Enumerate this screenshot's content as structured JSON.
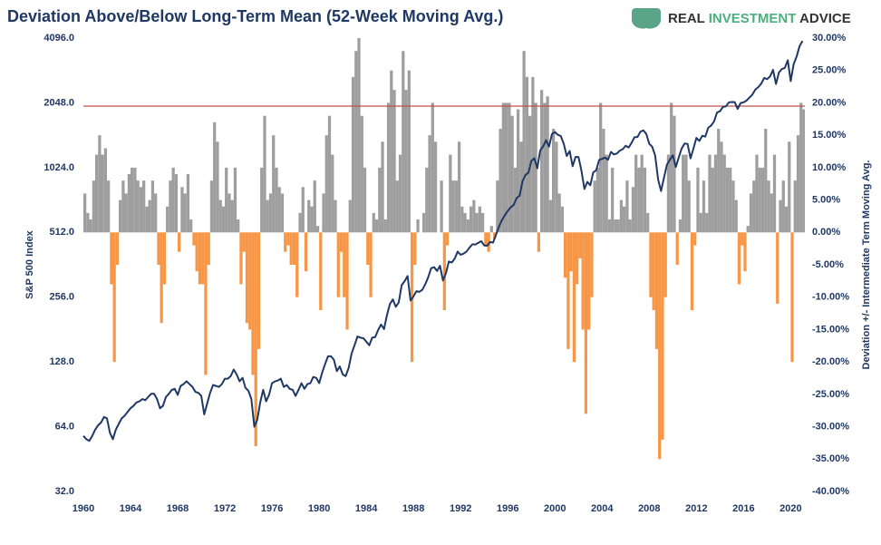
{
  "brand": {
    "parts": [
      "REAL",
      "INVESTMENT",
      "ADVICE"
    ]
  },
  "chart_data": {
    "type": "combo",
    "title": "Deviation Above/Below Long-Term Mean (52-Week Moving Avg.)",
    "ylabel": "S&P 500 Index",
    "y2label": "Deviation +/- Intermediate Term Moving Avg.",
    "xlim": [
      1960,
      2021.2
    ],
    "xticks": [
      1960,
      1964,
      1968,
      1972,
      1976,
      1980,
      1984,
      1988,
      1992,
      1996,
      2000,
      2004,
      2008,
      2012,
      2016,
      2020
    ],
    "ylog": true,
    "ylim": [
      32,
      4096
    ],
    "yticks": [
      {
        "value": 32,
        "label": "32.0"
      },
      {
        "value": 64,
        "label": "64.0"
      },
      {
        "value": 128,
        "label": "128.0"
      },
      {
        "value": 256,
        "label": "256.0"
      },
      {
        "value": 512,
        "label": "512.0"
      },
      {
        "value": 1024,
        "label": "1024.0"
      },
      {
        "value": 2048,
        "label": "2048.0"
      },
      {
        "value": 4096,
        "label": "4096.0"
      }
    ],
    "y2lim": [
      -40,
      30
    ],
    "y2ticks": [
      {
        "value": 30,
        "label": "30.00%"
      },
      {
        "value": 25,
        "label": "25.00%"
      },
      {
        "value": 20,
        "label": "20.00%"
      },
      {
        "value": 15,
        "label": "15.00%"
      },
      {
        "value": 10,
        "label": "10.00%"
      },
      {
        "value": 5,
        "label": "5.00%"
      },
      {
        "value": 0,
        "label": "0.00%"
      },
      {
        "value": -5,
        "label": "-5.00%"
      },
      {
        "value": -10,
        "label": "-10.00%"
      },
      {
        "value": -15,
        "label": "-15.00%"
      },
      {
        "value": -20,
        "label": "-20.00%"
      },
      {
        "value": -25,
        "label": "-25.00%"
      },
      {
        "value": -30,
        "label": "-30.00%"
      },
      {
        "value": -35,
        "label": "-35.00%"
      },
      {
        "value": -40,
        "label": "-40.00%"
      }
    ],
    "reference_line": {
      "value": 19.5,
      "axis": "y2",
      "color": "#c0504d"
    },
    "x": [
      1960,
      1960.25,
      1960.5,
      1960.75,
      1961,
      1961.25,
      1961.5,
      1961.75,
      1962,
      1962.25,
      1962.5,
      1962.75,
      1963,
      1963.25,
      1963.5,
      1963.75,
      1964,
      1964.25,
      1964.5,
      1964.75,
      1965,
      1965.25,
      1965.5,
      1965.75,
      1966,
      1966.25,
      1966.5,
      1966.75,
      1967,
      1967.25,
      1967.5,
      1967.75,
      1968,
      1968.25,
      1968.5,
      1968.75,
      1969,
      1969.25,
      1969.5,
      1969.75,
      1970,
      1970.25,
      1970.5,
      1970.75,
      1971,
      1971.25,
      1971.5,
      1971.75,
      1972,
      1972.25,
      1972.5,
      1972.75,
      1973,
      1973.25,
      1973.5,
      1973.75,
      1974,
      1974.25,
      1974.5,
      1974.75,
      1975,
      1975.25,
      1975.5,
      1975.75,
      1976,
      1976.25,
      1976.5,
      1976.75,
      1977,
      1977.25,
      1977.5,
      1977.75,
      1978,
      1978.25,
      1978.5,
      1978.75,
      1979,
      1979.25,
      1979.5,
      1979.75,
      1980,
      1980.25,
      1980.5,
      1980.75,
      1981,
      1981.25,
      1981.5,
      1981.75,
      1982,
      1982.25,
      1982.5,
      1982.75,
      1983,
      1983.25,
      1983.5,
      1983.75,
      1984,
      1984.25,
      1984.5,
      1984.75,
      1985,
      1985.25,
      1985.5,
      1985.75,
      1986,
      1986.25,
      1986.5,
      1986.75,
      1987,
      1987.25,
      1987.5,
      1987.75,
      1988,
      1988.25,
      1988.5,
      1988.75,
      1989,
      1989.25,
      1989.5,
      1989.75,
      1990,
      1990.25,
      1990.5,
      1990.75,
      1991,
      1991.25,
      1991.5,
      1991.75,
      1992,
      1992.25,
      1992.5,
      1992.75,
      1993,
      1993.25,
      1993.5,
      1993.75,
      1994,
      1994.25,
      1994.5,
      1994.75,
      1995,
      1995.25,
      1995.5,
      1995.75,
      1996,
      1996.25,
      1996.5,
      1996.75,
      1997,
      1997.25,
      1997.5,
      1997.75,
      1998,
      1998.25,
      1998.5,
      1998.75,
      1999,
      1999.25,
      1999.5,
      1999.75,
      2000,
      2000.25,
      2000.5,
      2000.75,
      2001,
      2001.25,
      2001.5,
      2001.75,
      2002,
      2002.25,
      2002.5,
      2002.75,
      2003,
      2003.25,
      2003.5,
      2003.75,
      2004,
      2004.25,
      2004.5,
      2004.75,
      2005,
      2005.25,
      2005.5,
      2005.75,
      2006,
      2006.25,
      2006.5,
      2006.75,
      2007,
      2007.25,
      2007.5,
      2007.75,
      2008,
      2008.25,
      2008.5,
      2008.75,
      2009,
      2009.25,
      2009.5,
      2009.75,
      2010,
      2010.25,
      2010.5,
      2010.75,
      2011,
      2011.25,
      2011.5,
      2011.75,
      2012,
      2012.25,
      2012.5,
      2012.75,
      2013,
      2013.25,
      2013.5,
      2013.75,
      2014,
      2014.25,
      2014.5,
      2014.75,
      2015,
      2015.25,
      2015.5,
      2015.75,
      2016,
      2016.25,
      2016.5,
      2016.75,
      2017,
      2017.25,
      2017.5,
      2017.75,
      2018,
      2018.25,
      2018.5,
      2018.75,
      2019,
      2019.25,
      2019.5,
      2019.75,
      2020,
      2020.25,
      2020.5,
      2020.75,
      2021
    ],
    "series": [
      {
        "type": "bar",
        "axis": "y2",
        "color": "#9e9e9e",
        "negative_color": "#f79646",
        "values": [
          6,
          3,
          2,
          8,
          12,
          15,
          12,
          13,
          8,
          -8,
          -20,
          -5,
          5,
          8,
          6,
          9,
          10,
          10,
          8,
          7,
          8,
          4,
          5,
          8,
          6,
          -5,
          -14,
          -8,
          4,
          8,
          10,
          9,
          -3,
          7,
          6,
          9,
          2,
          -2,
          -6,
          -8,
          -8,
          -22,
          -5,
          8,
          17,
          14,
          5,
          4,
          10,
          6,
          5,
          10,
          2,
          -8,
          -3,
          -14,
          -15,
          -22,
          -33,
          -18,
          10,
          18,
          5,
          6,
          15,
          10,
          7,
          6,
          -3,
          -2,
          -5,
          -5,
          -10,
          3,
          7,
          -6,
          5,
          4,
          8,
          1,
          -12,
          6,
          15,
          18,
          12,
          5,
          -10,
          -3,
          -10,
          -15,
          5,
          24,
          28,
          30,
          18,
          10,
          -5,
          -10,
          3,
          2,
          10,
          14,
          2,
          20,
          25,
          22,
          8,
          12,
          28,
          22,
          25,
          -20,
          -5,
          2,
          0,
          3,
          10,
          15,
          20,
          14,
          0,
          8,
          -12,
          -2,
          12,
          8,
          8,
          14,
          4,
          3,
          2,
          4,
          5,
          3,
          4,
          3,
          -2,
          -3,
          1,
          -1,
          8,
          16,
          20,
          20,
          20,
          18,
          10,
          19,
          14,
          28,
          24,
          18,
          24,
          20,
          -3,
          22,
          20,
          21,
          5,
          16,
          14,
          6,
          4,
          -7,
          -18,
          -6,
          -20,
          -8,
          -4,
          -15,
          -28,
          -15,
          -10,
          8,
          10,
          20,
          16,
          12,
          2,
          10,
          2,
          2,
          5,
          4,
          8,
          2,
          7,
          12,
          10,
          12,
          10,
          3,
          -10,
          -12,
          -18,
          -35,
          -32,
          -10,
          12,
          20,
          18,
          -5,
          2,
          12,
          12,
          8,
          -12,
          -2,
          10,
          3,
          8,
          3,
          12,
          10,
          12,
          16,
          14,
          12,
          10,
          10,
          8,
          5,
          -8,
          -2,
          -6,
          1,
          6,
          8,
          12,
          10,
          10,
          16,
          8,
          6,
          12,
          -11,
          5,
          8,
          4,
          14,
          -20,
          8,
          15,
          20,
          19
        ]
      },
      {
        "type": "line",
        "axis": "y",
        "color": "#1f3864",
        "values": [
          58,
          56,
          55,
          58,
          62,
          65,
          67,
          71,
          70,
          60,
          56,
          62,
          66,
          70,
          72,
          75,
          78,
          80,
          83,
          84,
          86,
          85,
          88,
          91,
          91,
          86,
          78,
          80,
          88,
          91,
          95,
          96,
          90,
          99,
          101,
          104,
          101,
          98,
          93,
          92,
          89,
          73,
          82,
          92,
          100,
          99,
          98,
          101,
          107,
          107,
          110,
          118,
          112,
          104,
          108,
          97,
          94,
          86,
          64,
          69,
          83,
          95,
          84,
          90,
          102,
          104,
          105,
          107,
          98,
          100,
          96,
          95,
          89,
          95,
          102,
          96,
          101,
          102,
          109,
          108,
          102,
          114,
          125,
          136,
          136,
          131,
          116,
          122,
          112,
          110,
          120,
          140,
          153,
          168,
          166,
          165,
          159,
          153,
          166,
          167,
          180,
          191,
          182,
          211,
          238,
          250,
          231,
          242,
          291,
          304,
          321,
          247,
          258,
          273,
          271,
          277,
          294,
          317,
          349,
          353,
          339,
          358,
          306,
          330,
          375,
          371,
          387,
          417,
          403,
          408,
          417,
          435,
          451,
          450,
          458,
          466,
          445,
          444,
          462,
          459,
          500,
          544,
          584,
          615,
          645,
          670,
          687,
          740,
          757,
          885,
          947,
          970,
          1101,
          1133,
          1017,
          1229,
          1286,
          1372,
          1282,
          1469,
          1498,
          1454,
          1436,
          1320,
          1160,
          1224,
          1040,
          1148,
          1147,
          989,
          815,
          879,
          848,
          974,
          995,
          1111,
          1126,
          1140,
          1114,
          1211,
          1180,
          1191,
          1228,
          1248,
          1294,
          1270,
          1335,
          1418,
          1420,
          1503,
          1526,
          1468,
          1322,
          1280,
          1166,
          903,
          797,
          919,
          1057,
          1115,
          1169,
          1031,
          1141,
          1257,
          1325,
          1320,
          1131,
          1257,
          1408,
          1362,
          1440,
          1426,
          1569,
          1606,
          1681,
          1848,
          1872,
          1960,
          1972,
          2058,
          2067,
          2063,
          1920,
          2044,
          2060,
          2099,
          2168,
          2238,
          2362,
          2423,
          2519,
          2673,
          2640,
          2718,
          2914,
          2507,
          2834,
          2942,
          2977,
          3231,
          2585,
          3100,
          3363,
          3756,
          3973
        ]
      }
    ]
  }
}
